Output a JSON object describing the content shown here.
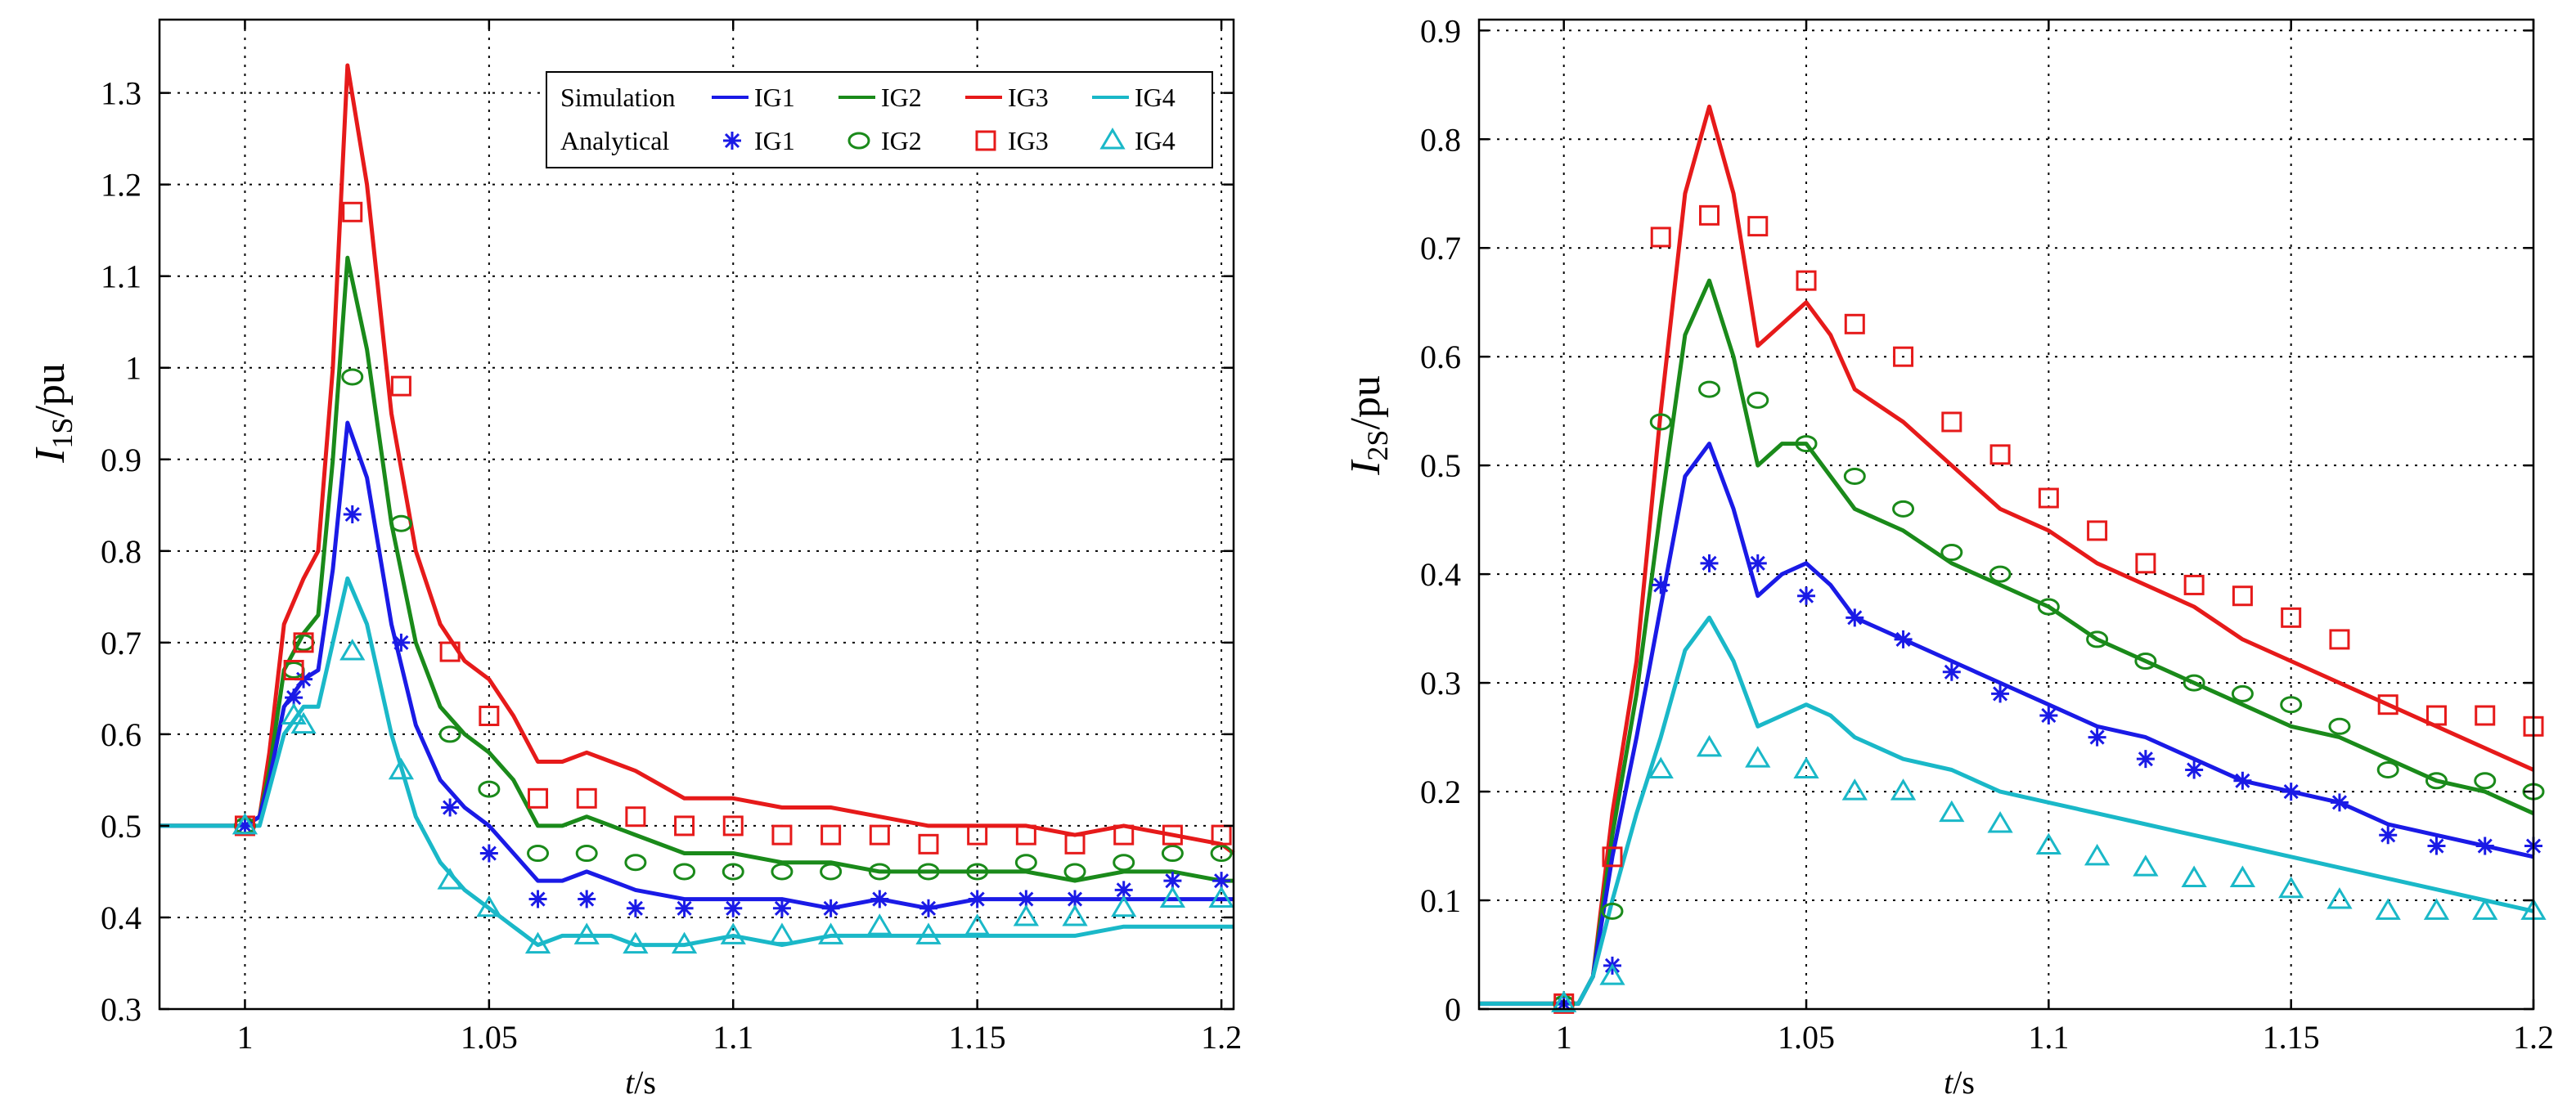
{
  "colors": {
    "IG1": "#1a1ae6",
    "IG2": "#1a8a1a",
    "IG3": "#e61a1a",
    "IG4": "#1ab8c8"
  },
  "legend": {
    "simulation_label": "Simulation",
    "analytical_label": "Analytical",
    "entries": [
      "IG1",
      "IG2",
      "IG3",
      "IG4"
    ]
  },
  "chart_data": [
    {
      "type": "line",
      "ylabel_main": "I",
      "ylabel_sub": "1S",
      "ylabel_rest": "/pu",
      "xlabel_main": "t",
      "xlabel_rest": "/s",
      "xlim": [
        0.9825,
        1.2025
      ],
      "ylim": [
        0.3,
        1.38
      ],
      "xticks": [
        1,
        1.05,
        1.1,
        1.15,
        1.2
      ],
      "xtick_labels": [
        "1",
        "1.05",
        "1.1",
        "1.15",
        "1.2"
      ],
      "yticks": [
        0.3,
        0.4,
        0.5,
        0.6,
        0.7,
        0.8,
        0.9,
        1.0,
        1.1,
        1.2,
        1.3
      ],
      "ytick_labels": [
        "0.3",
        "0.4",
        "0.5",
        "0.6",
        "0.7",
        "0.8",
        "0.9",
        "1",
        "1.1",
        "1.2",
        "1.3"
      ],
      "grid": true,
      "legend_position": "top-right",
      "series": [
        {
          "name": "IG3",
          "kind": "simulation",
          "x": [
            0.9825,
            1.0,
            1.003,
            1.005,
            1.008,
            1.012,
            1.015,
            1.018,
            1.021,
            1.025,
            1.03,
            1.035,
            1.04,
            1.045,
            1.05,
            1.055,
            1.06,
            1.065,
            1.07,
            1.075,
            1.08,
            1.09,
            1.1,
            1.11,
            1.12,
            1.13,
            1.14,
            1.15,
            1.16,
            1.17,
            1.18,
            1.19,
            1.2,
            1.2025
          ],
          "y": [
            0.5,
            0.5,
            0.51,
            0.58,
            0.72,
            0.77,
            0.8,
            1.0,
            1.33,
            1.2,
            0.95,
            0.8,
            0.72,
            0.68,
            0.66,
            0.62,
            0.57,
            0.57,
            0.58,
            0.57,
            0.56,
            0.53,
            0.53,
            0.52,
            0.52,
            0.51,
            0.5,
            0.5,
            0.5,
            0.49,
            0.5,
            0.49,
            0.48,
            0.47
          ]
        },
        {
          "name": "IG2",
          "kind": "simulation",
          "x": [
            0.9825,
            1.0,
            1.003,
            1.005,
            1.008,
            1.012,
            1.015,
            1.018,
            1.021,
            1.025,
            1.03,
            1.035,
            1.04,
            1.045,
            1.05,
            1.055,
            1.06,
            1.065,
            1.07,
            1.075,
            1.08,
            1.09,
            1.1,
            1.11,
            1.12,
            1.13,
            1.14,
            1.15,
            1.16,
            1.17,
            1.18,
            1.19,
            1.2,
            1.2025
          ],
          "y": [
            0.5,
            0.5,
            0.51,
            0.56,
            0.67,
            0.71,
            0.73,
            0.9,
            1.12,
            1.02,
            0.83,
            0.7,
            0.63,
            0.6,
            0.58,
            0.55,
            0.5,
            0.5,
            0.51,
            0.5,
            0.49,
            0.47,
            0.47,
            0.46,
            0.46,
            0.45,
            0.45,
            0.45,
            0.45,
            0.44,
            0.45,
            0.45,
            0.44,
            0.44
          ]
        },
        {
          "name": "IG1",
          "kind": "simulation",
          "x": [
            0.9825,
            1.0,
            1.003,
            1.005,
            1.008,
            1.012,
            1.015,
            1.018,
            1.021,
            1.025,
            1.03,
            1.035,
            1.04,
            1.045,
            1.05,
            1.055,
            1.06,
            1.065,
            1.07,
            1.075,
            1.08,
            1.09,
            1.1,
            1.11,
            1.12,
            1.13,
            1.14,
            1.15,
            1.16,
            1.17,
            1.18,
            1.19,
            1.2,
            1.2025
          ],
          "y": [
            0.5,
            0.5,
            0.51,
            0.55,
            0.63,
            0.66,
            0.67,
            0.78,
            0.94,
            0.88,
            0.72,
            0.61,
            0.55,
            0.52,
            0.5,
            0.47,
            0.44,
            0.44,
            0.45,
            0.44,
            0.43,
            0.42,
            0.42,
            0.42,
            0.41,
            0.42,
            0.41,
            0.42,
            0.42,
            0.42,
            0.42,
            0.42,
            0.42,
            0.42
          ]
        },
        {
          "name": "IG4",
          "kind": "simulation",
          "x": [
            0.9825,
            1.0,
            1.003,
            1.005,
            1.008,
            1.012,
            1.015,
            1.018,
            1.021,
            1.025,
            1.03,
            1.035,
            1.04,
            1.045,
            1.05,
            1.055,
            1.06,
            1.065,
            1.07,
            1.075,
            1.08,
            1.09,
            1.1,
            1.11,
            1.12,
            1.13,
            1.14,
            1.15,
            1.16,
            1.17,
            1.18,
            1.19,
            1.2,
            1.2025
          ],
          "y": [
            0.5,
            0.5,
            0.5,
            0.54,
            0.6,
            0.63,
            0.63,
            0.7,
            0.77,
            0.72,
            0.6,
            0.51,
            0.46,
            0.43,
            0.41,
            0.39,
            0.37,
            0.38,
            0.38,
            0.38,
            0.37,
            0.37,
            0.38,
            0.37,
            0.38,
            0.38,
            0.38,
            0.38,
            0.38,
            0.38,
            0.39,
            0.39,
            0.39,
            0.39
          ]
        },
        {
          "name": "IG1",
          "kind": "analytical",
          "marker": "star",
          "x": [
            1.0,
            1.01,
            1.012,
            1.022,
            1.032,
            1.042,
            1.05,
            1.06,
            1.07,
            1.08,
            1.09,
            1.1,
            1.11,
            1.12,
            1.13,
            1.14,
            1.15,
            1.16,
            1.17,
            1.18,
            1.19,
            1.2
          ],
          "y": [
            0.5,
            0.64,
            0.66,
            0.84,
            0.7,
            0.52,
            0.47,
            0.42,
            0.42,
            0.41,
            0.41,
            0.41,
            0.41,
            0.41,
            0.42,
            0.41,
            0.42,
            0.42,
            0.42,
            0.43,
            0.44,
            0.44
          ]
        },
        {
          "name": "IG2",
          "kind": "analytical",
          "marker": "circle",
          "x": [
            1.0,
            1.01,
            1.012,
            1.022,
            1.032,
            1.042,
            1.05,
            1.06,
            1.07,
            1.08,
            1.09,
            1.1,
            1.11,
            1.12,
            1.13,
            1.14,
            1.15,
            1.16,
            1.17,
            1.18,
            1.19,
            1.2
          ],
          "y": [
            0.5,
            0.67,
            0.7,
            0.99,
            0.83,
            0.6,
            0.54,
            0.47,
            0.47,
            0.46,
            0.45,
            0.45,
            0.45,
            0.45,
            0.45,
            0.45,
            0.45,
            0.46,
            0.45,
            0.46,
            0.47,
            0.47
          ]
        },
        {
          "name": "IG3",
          "kind": "analytical",
          "marker": "square",
          "x": [
            1.0,
            1.01,
            1.012,
            1.022,
            1.032,
            1.042,
            1.05,
            1.06,
            1.07,
            1.08,
            1.09,
            1.1,
            1.11,
            1.12,
            1.13,
            1.14,
            1.15,
            1.16,
            1.17,
            1.18,
            1.19,
            1.2
          ],
          "y": [
            0.5,
            0.67,
            0.7,
            1.17,
            0.98,
            0.69,
            0.62,
            0.53,
            0.53,
            0.51,
            0.5,
            0.5,
            0.49,
            0.49,
            0.49,
            0.48,
            0.49,
            0.49,
            0.48,
            0.49,
            0.49,
            0.49
          ]
        },
        {
          "name": "IG4",
          "kind": "analytical",
          "marker": "triangle",
          "x": [
            1.0,
            1.01,
            1.012,
            1.022,
            1.032,
            1.042,
            1.05,
            1.06,
            1.07,
            1.08,
            1.09,
            1.1,
            1.11,
            1.12,
            1.13,
            1.14,
            1.15,
            1.16,
            1.17,
            1.18,
            1.19,
            1.2
          ],
          "y": [
            0.5,
            0.62,
            0.61,
            0.69,
            0.56,
            0.44,
            0.41,
            0.37,
            0.38,
            0.37,
            0.37,
            0.38,
            0.38,
            0.38,
            0.39,
            0.38,
            0.39,
            0.4,
            0.4,
            0.41,
            0.42,
            0.42
          ]
        }
      ]
    },
    {
      "type": "line",
      "ylabel_main": "I",
      "ylabel_sub": "2S",
      "ylabel_rest": "/pu",
      "xlabel_main": "t",
      "xlabel_rest": "/s",
      "xlim": [
        0.9825,
        1.2
      ],
      "ylim": [
        0,
        0.91
      ],
      "xticks": [
        1,
        1.05,
        1.1,
        1.15,
        1.2
      ],
      "xtick_labels": [
        "1",
        "1.05",
        "1.1",
        "1.15",
        "1.2"
      ],
      "yticks": [
        0,
        0.1,
        0.2,
        0.3,
        0.4,
        0.5,
        0.6,
        0.7,
        0.8,
        0.9
      ],
      "ytick_labels": [
        "0",
        "0.1",
        "0.2",
        "0.3",
        "0.4",
        "0.5",
        "0.6",
        "0.7",
        "0.8",
        "0.9"
      ],
      "grid": true,
      "series": [
        {
          "name": "IG3",
          "kind": "simulation",
          "x": [
            0.9825,
            1.0,
            1.003,
            1.006,
            1.01,
            1.015,
            1.02,
            1.025,
            1.03,
            1.035,
            1.04,
            1.045,
            1.05,
            1.055,
            1.06,
            1.07,
            1.08,
            1.09,
            1.1,
            1.11,
            1.12,
            1.13,
            1.14,
            1.15,
            1.16,
            1.17,
            1.18,
            1.19,
            1.2
          ],
          "y": [
            0.005,
            0.005,
            0.005,
            0.03,
            0.18,
            0.32,
            0.55,
            0.75,
            0.83,
            0.75,
            0.61,
            0.63,
            0.65,
            0.62,
            0.57,
            0.54,
            0.5,
            0.46,
            0.44,
            0.41,
            0.39,
            0.37,
            0.34,
            0.32,
            0.3,
            0.28,
            0.26,
            0.24,
            0.22
          ]
        },
        {
          "name": "IG2",
          "kind": "simulation",
          "x": [
            0.9825,
            1.0,
            1.003,
            1.006,
            1.01,
            1.015,
            1.02,
            1.025,
            1.03,
            1.035,
            1.04,
            1.045,
            1.05,
            1.055,
            1.06,
            1.07,
            1.08,
            1.09,
            1.1,
            1.11,
            1.12,
            1.13,
            1.14,
            1.15,
            1.16,
            1.17,
            1.18,
            1.19,
            1.2
          ],
          "y": [
            0.005,
            0.005,
            0.005,
            0.03,
            0.16,
            0.29,
            0.46,
            0.62,
            0.67,
            0.6,
            0.5,
            0.52,
            0.52,
            0.49,
            0.46,
            0.44,
            0.41,
            0.39,
            0.37,
            0.34,
            0.32,
            0.3,
            0.28,
            0.26,
            0.25,
            0.23,
            0.21,
            0.2,
            0.18
          ]
        },
        {
          "name": "IG1",
          "kind": "simulation",
          "x": [
            0.9825,
            1.0,
            1.003,
            1.006,
            1.01,
            1.015,
            1.02,
            1.025,
            1.03,
            1.035,
            1.04,
            1.045,
            1.05,
            1.055,
            1.06,
            1.07,
            1.08,
            1.09,
            1.1,
            1.11,
            1.12,
            1.13,
            1.14,
            1.15,
            1.16,
            1.17,
            1.18,
            1.19,
            1.2
          ],
          "y": [
            0.005,
            0.005,
            0.005,
            0.03,
            0.14,
            0.25,
            0.37,
            0.49,
            0.52,
            0.46,
            0.38,
            0.4,
            0.41,
            0.39,
            0.36,
            0.34,
            0.32,
            0.3,
            0.28,
            0.26,
            0.25,
            0.23,
            0.21,
            0.2,
            0.19,
            0.17,
            0.16,
            0.15,
            0.14
          ]
        },
        {
          "name": "IG4",
          "kind": "simulation",
          "x": [
            0.9825,
            1.0,
            1.003,
            1.006,
            1.01,
            1.015,
            1.02,
            1.025,
            1.03,
            1.035,
            1.04,
            1.045,
            1.05,
            1.055,
            1.06,
            1.07,
            1.08,
            1.09,
            1.1,
            1.11,
            1.12,
            1.13,
            1.14,
            1.15,
            1.16,
            1.17,
            1.18,
            1.19,
            1.2
          ],
          "y": [
            0.005,
            0.005,
            0.005,
            0.03,
            0.1,
            0.18,
            0.25,
            0.33,
            0.36,
            0.32,
            0.26,
            0.27,
            0.28,
            0.27,
            0.25,
            0.23,
            0.22,
            0.2,
            0.19,
            0.18,
            0.17,
            0.16,
            0.15,
            0.14,
            0.13,
            0.12,
            0.11,
            0.1,
            0.09
          ]
        },
        {
          "name": "IG1",
          "kind": "analytical",
          "marker": "star",
          "x": [
            1.0,
            1.01,
            1.02,
            1.03,
            1.04,
            1.05,
            1.06,
            1.07,
            1.08,
            1.09,
            1.1,
            1.11,
            1.12,
            1.13,
            1.14,
            1.15,
            1.16,
            1.17,
            1.18,
            1.19,
            1.2
          ],
          "y": [
            0.005,
            0.04,
            0.39,
            0.41,
            0.41,
            0.38,
            0.36,
            0.34,
            0.31,
            0.29,
            0.27,
            0.25,
            0.23,
            0.22,
            0.21,
            0.2,
            0.19,
            0.16,
            0.15,
            0.15,
            0.15
          ]
        },
        {
          "name": "IG2",
          "kind": "analytical",
          "marker": "circle",
          "x": [
            1.0,
            1.01,
            1.02,
            1.03,
            1.04,
            1.05,
            1.06,
            1.07,
            1.08,
            1.09,
            1.1,
            1.11,
            1.12,
            1.13,
            1.14,
            1.15,
            1.16,
            1.17,
            1.18,
            1.19,
            1.2
          ],
          "y": [
            0.005,
            0.09,
            0.54,
            0.57,
            0.56,
            0.52,
            0.49,
            0.46,
            0.42,
            0.4,
            0.37,
            0.34,
            0.32,
            0.3,
            0.29,
            0.28,
            0.26,
            0.22,
            0.21,
            0.21,
            0.2
          ]
        },
        {
          "name": "IG3",
          "kind": "analytical",
          "marker": "square",
          "x": [
            1.0,
            1.01,
            1.02,
            1.03,
            1.04,
            1.05,
            1.06,
            1.07,
            1.08,
            1.09,
            1.1,
            1.11,
            1.12,
            1.13,
            1.14,
            1.15,
            1.16,
            1.17,
            1.18,
            1.19,
            1.2
          ],
          "y": [
            0.005,
            0.14,
            0.71,
            0.73,
            0.72,
            0.67,
            0.63,
            0.6,
            0.54,
            0.51,
            0.47,
            0.44,
            0.41,
            0.39,
            0.38,
            0.36,
            0.34,
            0.28,
            0.27,
            0.27,
            0.26
          ]
        },
        {
          "name": "IG4",
          "kind": "analytical",
          "marker": "triangle",
          "x": [
            1.0,
            1.01,
            1.02,
            1.03,
            1.04,
            1.05,
            1.06,
            1.07,
            1.08,
            1.09,
            1.1,
            1.11,
            1.12,
            1.13,
            1.14,
            1.15,
            1.16,
            1.17,
            1.18,
            1.19,
            1.2
          ],
          "y": [
            0.005,
            0.03,
            0.22,
            0.24,
            0.23,
            0.22,
            0.2,
            0.2,
            0.18,
            0.17,
            0.15,
            0.14,
            0.13,
            0.12,
            0.12,
            0.11,
            0.1,
            0.09,
            0.09,
            0.09,
            0.09
          ]
        }
      ]
    }
  ]
}
